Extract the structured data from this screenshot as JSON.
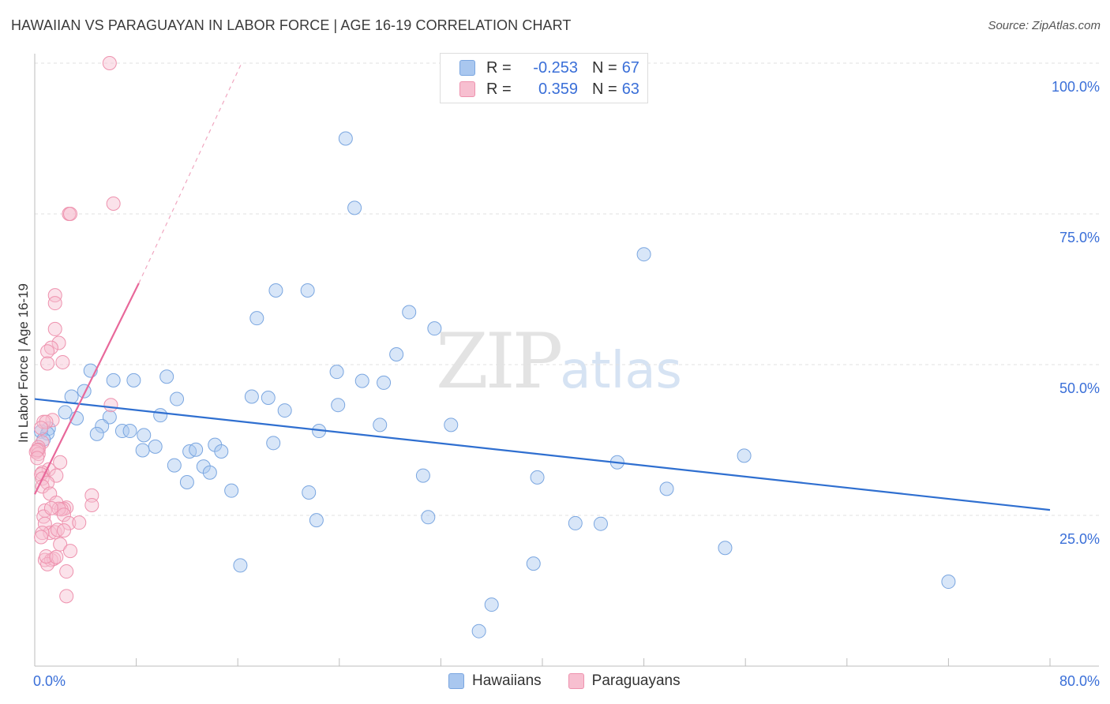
{
  "title": "HAWAIIAN VS PARAGUAYAN IN LABOR FORCE | AGE 16-19 CORRELATION CHART",
  "source": "Source: ZipAtlas.com",
  "watermark": {
    "zip": "ZIP",
    "atlas": "atlas"
  },
  "legend": {
    "rows": [
      {
        "label": "R =",
        "r": "-0.253",
        "n_label": "N =",
        "n": "67",
        "color": "#a9c7ef",
        "border": "#7aa6e0"
      },
      {
        "label": "R =",
        "r": "0.359",
        "n_label": "N =",
        "n": "63",
        "color": "#f7bfd0",
        "border": "#ee92ae"
      }
    ]
  },
  "bottom_legend": [
    "Hawaiians",
    "Paraguayans"
  ],
  "chart_data": {
    "type": "scatter",
    "xlabel": "",
    "ylabel": "In Labor Force | Age 16-19",
    "xlim": [
      0,
      80
    ],
    "ylim": [
      0,
      100
    ],
    "x_tick_labels": [
      "0.0%",
      "80.0%"
    ],
    "y_tick_values": [
      25,
      50,
      75,
      100
    ],
    "y_tick_labels": [
      "25.0%",
      "50.0%",
      "75.0%",
      "100.0%"
    ],
    "grid": true,
    "series": [
      {
        "name": "Hawaiians",
        "color": "#7aa6e0",
        "fill": "rgba(169,199,239,0.45)",
        "trend": {
          "x": [
            0,
            80
          ],
          "y": [
            44.3,
            25.9
          ],
          "color": "#2f6fd0"
        },
        "points": [
          [
            24.5,
            87.5
          ],
          [
            25.2,
            76
          ],
          [
            48,
            68.3
          ],
          [
            19,
            62.3
          ],
          [
            21.5,
            62.3
          ],
          [
            17.5,
            57.7
          ],
          [
            29.5,
            58.7
          ],
          [
            31.5,
            56
          ],
          [
            28.5,
            51.7
          ],
          [
            23.8,
            48.8
          ],
          [
            25.8,
            47.3
          ],
          [
            27.5,
            47
          ],
          [
            4.4,
            49
          ],
          [
            6.2,
            47.4
          ],
          [
            7.8,
            47.4
          ],
          [
            10.4,
            48
          ],
          [
            3.9,
            45.6
          ],
          [
            2.9,
            44.7
          ],
          [
            11.2,
            44.3
          ],
          [
            17.1,
            44.7
          ],
          [
            18.4,
            44.5
          ],
          [
            19.7,
            42.4
          ],
          [
            23.9,
            43.3
          ],
          [
            9.9,
            41.6
          ],
          [
            2.4,
            42.1
          ],
          [
            3.3,
            41.1
          ],
          [
            5.9,
            41.3
          ],
          [
            27.2,
            40
          ],
          [
            32.8,
            40
          ],
          [
            1.1,
            39.4
          ],
          [
            0.5,
            38.9
          ],
          [
            1,
            38.6
          ],
          [
            5.3,
            39.8
          ],
          [
            6.9,
            39
          ],
          [
            7.5,
            39
          ],
          [
            4.9,
            38.5
          ],
          [
            8.6,
            38.3
          ],
          [
            22.4,
            39
          ],
          [
            18.8,
            37
          ],
          [
            9.5,
            36.4
          ],
          [
            8.5,
            35.8
          ],
          [
            12.2,
            35.6
          ],
          [
            12.7,
            35.9
          ],
          [
            14.2,
            36.7
          ],
          [
            14.7,
            35.6
          ],
          [
            11,
            33.3
          ],
          [
            13.3,
            33.1
          ],
          [
            13.8,
            32.1
          ],
          [
            45.9,
            33.8
          ],
          [
            55.9,
            34.9
          ],
          [
            30.6,
            31.6
          ],
          [
            39.6,
            31.3
          ],
          [
            12,
            30.5
          ],
          [
            15.5,
            29.1
          ],
          [
            21.6,
            28.8
          ],
          [
            49.8,
            29.4
          ],
          [
            31,
            24.7
          ],
          [
            22.2,
            24.2
          ],
          [
            42.6,
            23.7
          ],
          [
            44.6,
            23.6
          ],
          [
            54.4,
            19.6
          ],
          [
            16.2,
            16.7
          ],
          [
            39.3,
            17
          ],
          [
            72,
            14
          ],
          [
            36,
            10.2
          ],
          [
            35,
            5.8
          ],
          [
            0.7,
            37.6
          ]
        ]
      },
      {
        "name": "Paraguayans",
        "color": "#ee92ae",
        "fill": "rgba(247,191,208,0.45)",
        "trend": {
          "x": [
            0,
            8.2
          ],
          "y": [
            28.5,
            63.5
          ],
          "color": "#e8689a"
        },
        "trend_extended": {
          "x": [
            8.2,
            16.3
          ],
          "y": [
            63.5,
            100
          ]
        },
        "points": [
          [
            5.9,
            100
          ],
          [
            6.2,
            76.7
          ],
          [
            2.7,
            75
          ],
          [
            2.8,
            75
          ],
          [
            1.6,
            61.5
          ],
          [
            1.6,
            60.2
          ],
          [
            1.6,
            55.9
          ],
          [
            1.9,
            53.6
          ],
          [
            1.3,
            52.8
          ],
          [
            1,
            52.2
          ],
          [
            1,
            50.2
          ],
          [
            2.2,
            50.4
          ],
          [
            6,
            43.3
          ],
          [
            1.4,
            40.8
          ],
          [
            0.7,
            40.5
          ],
          [
            0.9,
            40.5
          ],
          [
            0.5,
            39.5
          ],
          [
            0.6,
            37.1
          ],
          [
            0.3,
            36.3
          ],
          [
            0.3,
            35.9
          ],
          [
            0.1,
            35.5
          ],
          [
            0.3,
            35.2
          ],
          [
            0.2,
            35.8
          ],
          [
            0.2,
            34.5
          ],
          [
            2,
            33.8
          ],
          [
            1.1,
            32.6
          ],
          [
            0.6,
            32.1
          ],
          [
            0.5,
            31.8
          ],
          [
            1.7,
            31.6
          ],
          [
            0.6,
            31.1
          ],
          [
            1,
            30.4
          ],
          [
            0.6,
            29.8
          ],
          [
            4.5,
            28.3
          ],
          [
            1.2,
            28.6
          ],
          [
            1.7,
            27.1
          ],
          [
            4.5,
            26.7
          ],
          [
            2.5,
            26.3
          ],
          [
            2.3,
            26.1
          ],
          [
            2.1,
            26
          ],
          [
            1.9,
            26.1
          ],
          [
            2.3,
            25.1
          ],
          [
            0.8,
            25.8
          ],
          [
            0.7,
            24.8
          ],
          [
            0.8,
            23.6
          ],
          [
            1.2,
            22.1
          ],
          [
            1.6,
            22.2
          ],
          [
            1.8,
            22.6
          ],
          [
            0.6,
            22.1
          ],
          [
            0.5,
            21.4
          ],
          [
            2.7,
            23.7
          ],
          [
            3.5,
            23.8
          ],
          [
            2,
            20.2
          ],
          [
            2.8,
            19.1
          ],
          [
            0.8,
            17.6
          ],
          [
            1.3,
            17.6
          ],
          [
            1.5,
            17.8
          ],
          [
            2.5,
            15.7
          ],
          [
            2.5,
            11.6
          ],
          [
            1,
            16.9
          ],
          [
            0.9,
            18.2
          ],
          [
            1.7,
            18.1
          ],
          [
            1.3,
            26.2
          ],
          [
            2.3,
            22.5
          ]
        ]
      }
    ]
  }
}
